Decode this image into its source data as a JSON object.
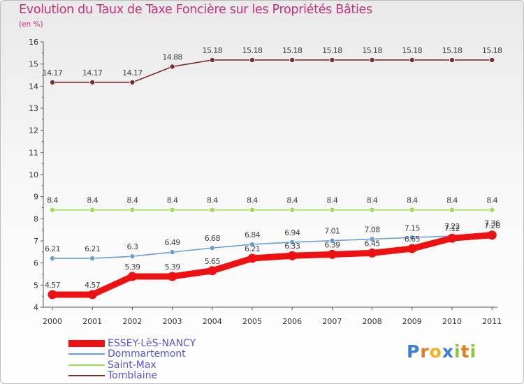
{
  "title": "Evolution du Taux de Taxe Foncière sur les Propriétés Bâties",
  "unit_label": "(en %)",
  "chart_data": {
    "type": "line",
    "title": "Evolution du Taux de Taxe Foncière sur les Propriétés Bâties",
    "ylabel": "(en %)",
    "xlabel": "",
    "ylim": [
      4,
      16
    ],
    "y_ticks": [
      "4",
      "5",
      "6",
      "7",
      "8",
      "9",
      "10",
      "11",
      "12",
      "13",
      "14",
      "15",
      "16"
    ],
    "categories": [
      "2000",
      "2001",
      "2002",
      "2003",
      "2004",
      "2005",
      "2006",
      "2007",
      "2008",
      "2009",
      "2010",
      "2011"
    ],
    "series": [
      {
        "name": "ESSEY-LèS-NANCY",
        "color": "#ee1111",
        "values": [
          4.57,
          4.57,
          5.39,
          5.39,
          5.65,
          6.21,
          6.33,
          6.39,
          6.45,
          6.65,
          7.12,
          7.26
        ],
        "labels": [
          "4.57",
          "4.57",
          "5.39",
          "5.39",
          "5.65",
          "6.21",
          "6.33",
          "6.39",
          "6.45",
          "6.65",
          "7.12",
          "7.26"
        ]
      },
      {
        "name": "Dommartemont",
        "color": "#6a9fd4",
        "values": [
          6.21,
          6.21,
          6.3,
          6.49,
          6.68,
          6.84,
          6.94,
          7.01,
          7.08,
          7.15,
          7.22,
          7.36
        ],
        "labels": [
          "6.21",
          "6.21",
          "6.3",
          "6.49",
          "6.68",
          "6.84",
          "6.94",
          "7.01",
          "7.08",
          "7.15",
          "7.22",
          "7.36"
        ]
      },
      {
        "name": "Saint-Max",
        "color": "#99dd55",
        "values": [
          8.4,
          8.4,
          8.4,
          8.4,
          8.4,
          8.4,
          8.4,
          8.4,
          8.4,
          8.4,
          8.4,
          8.4
        ],
        "labels": [
          "8.4",
          "8.4",
          "8.4",
          "8.4",
          "8.4",
          "8.4",
          "8.4",
          "8.4",
          "8.4",
          "8.4",
          "8.4",
          "8.4"
        ]
      },
      {
        "name": "Tomblaine",
        "color": "#7a2e2e",
        "values": [
          14.17,
          14.17,
          14.17,
          14.88,
          15.18,
          15.18,
          15.18,
          15.18,
          15.18,
          15.18,
          15.18,
          15.18
        ],
        "labels": [
          "14.17",
          "14.17",
          "14.17",
          "14.88",
          "15.18",
          "15.18",
          "15.18",
          "15.18",
          "15.18",
          "15.18",
          "15.18",
          "15.18"
        ]
      }
    ],
    "legend": [
      "ESSEY-LèS-NANCY",
      "Dommartemont",
      "Saint-Max",
      "Tomblaine"
    ],
    "legend_position": "bottom-left",
    "grid": false
  },
  "logo": {
    "letters": [
      "P",
      "r",
      "o",
      "x",
      "i",
      "t",
      "i"
    ]
  },
  "colors": {
    "title": "#c0337a",
    "legend_text": "#5555dd"
  }
}
